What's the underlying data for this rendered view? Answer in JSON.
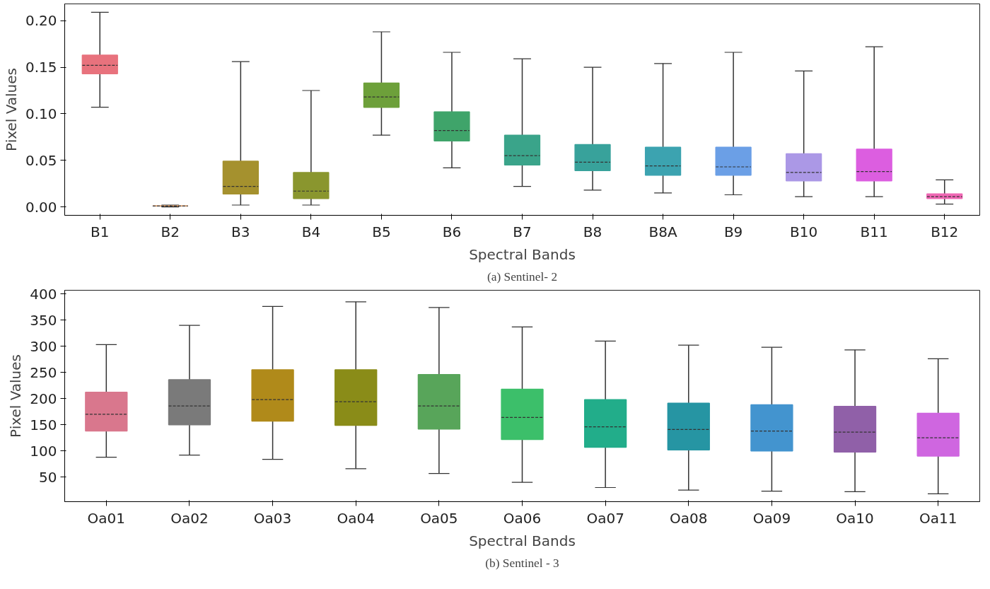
{
  "chart_data": [
    {
      "type": "box",
      "xlabel": "Spectral Bands",
      "ylabel": "Pixel Values",
      "annotations": [
        "(a) Sentinel- 2"
      ],
      "grid": false,
      "categories": [
        "B1",
        "B2",
        "B3",
        "B4",
        "B5",
        "B6",
        "B7",
        "B8",
        "B8A",
        "B9",
        "B10",
        "B11",
        "B12"
      ],
      "colors": [
        "#e8727d",
        "#d98a4b",
        "#a5912e",
        "#8a962e",
        "#6da03a",
        "#3fa46a",
        "#3aa48a",
        "#38a29b",
        "#3ca3b0",
        "#6b9fe6",
        "#ab98e6",
        "#dc5ee0",
        "#ef67b4"
      ],
      "boxes": [
        {
          "low": 0.107,
          "q1": 0.143,
          "median": 0.152,
          "q3": 0.163,
          "high": 0.209
        },
        {
          "low": 0.0,
          "q1": 0.001,
          "median": 0.001,
          "q3": 0.001,
          "high": 0.002
        },
        {
          "low": 0.002,
          "q1": 0.014,
          "median": 0.022,
          "q3": 0.049,
          "high": 0.156
        },
        {
          "low": 0.002,
          "q1": 0.009,
          "median": 0.017,
          "q3": 0.037,
          "high": 0.125
        },
        {
          "low": 0.077,
          "q1": 0.107,
          "median": 0.118,
          "q3": 0.133,
          "high": 0.188
        },
        {
          "low": 0.042,
          "q1": 0.071,
          "median": 0.082,
          "q3": 0.102,
          "high": 0.166
        },
        {
          "low": 0.022,
          "q1": 0.045,
          "median": 0.055,
          "q3": 0.077,
          "high": 0.159
        },
        {
          "low": 0.018,
          "q1": 0.039,
          "median": 0.048,
          "q3": 0.067,
          "high": 0.15
        },
        {
          "low": 0.015,
          "q1": 0.034,
          "median": 0.044,
          "q3": 0.064,
          "high": 0.154
        },
        {
          "low": 0.013,
          "q1": 0.034,
          "median": 0.043,
          "q3": 0.064,
          "high": 0.166
        },
        {
          "low": 0.011,
          "q1": 0.028,
          "median": 0.037,
          "q3": 0.057,
          "high": 0.146
        },
        {
          "low": 0.011,
          "q1": 0.028,
          "median": 0.038,
          "q3": 0.062,
          "high": 0.172
        },
        {
          "low": 0.003,
          "q1": 0.009,
          "median": 0.011,
          "q3": 0.014,
          "high": 0.029
        }
      ],
      "ylim": [
        -0.009,
        0.218
      ],
      "yticks": [
        {
          "value": 0,
          "label": "0.00"
        },
        {
          "value": 0.05,
          "label": "0.05"
        },
        {
          "value": 0.1,
          "label": "0.10"
        },
        {
          "value": 0.15,
          "label": "0.15"
        },
        {
          "value": 0.2,
          "label": "0.20"
        }
      ]
    },
    {
      "type": "box",
      "xlabel": "Spectral Bands",
      "ylabel": "Pixel Values",
      "annotations": [
        "(b) Sentinel - 3"
      ],
      "grid": false,
      "categories": [
        "Oa01",
        "Oa02",
        "Oa03",
        "Oa04",
        "Oa05",
        "Oa06",
        "Oa07",
        "Oa08",
        "Oa09",
        "Oa10",
        "Oa11"
      ],
      "colors": [
        "#d9778d",
        "#7a7a7a",
        "#b08a1a",
        "#8a8c18",
        "#58a55a",
        "#3cbf6a",
        "#22ad8a",
        "#2695a3",
        "#4394cf",
        "#9060a8",
        "#cf66e0"
      ],
      "boxes": [
        {
          "low": 88,
          "q1": 138,
          "median": 170,
          "q3": 212,
          "high": 303
        },
        {
          "low": 92,
          "q1": 150,
          "median": 186,
          "q3": 236,
          "high": 340
        },
        {
          "low": 84,
          "q1": 157,
          "median": 198,
          "q3": 255,
          "high": 376
        },
        {
          "low": 66,
          "q1": 149,
          "median": 194,
          "q3": 255,
          "high": 385
        },
        {
          "low": 57,
          "q1": 142,
          "median": 186,
          "q3": 246,
          "high": 374
        },
        {
          "low": 40,
          "q1": 122,
          "median": 164,
          "q3": 218,
          "high": 337
        },
        {
          "low": 30,
          "q1": 107,
          "median": 146,
          "q3": 198,
          "high": 310
        },
        {
          "low": 25,
          "q1": 102,
          "median": 141,
          "q3": 191,
          "high": 302
        },
        {
          "low": 23,
          "q1": 100,
          "median": 138,
          "q3": 188,
          "high": 298
        },
        {
          "low": 22,
          "q1": 98,
          "median": 136,
          "q3": 185,
          "high": 293
        },
        {
          "low": 18,
          "q1": 90,
          "median": 125,
          "q3": 172,
          "high": 276
        }
      ],
      "ylim": [
        3,
        407
      ],
      "yticks": [
        50,
        100,
        150,
        200,
        250,
        300,
        350,
        400
      ]
    }
  ]
}
